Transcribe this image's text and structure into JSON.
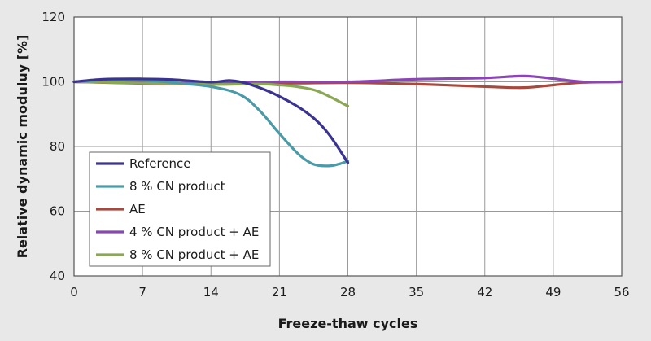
{
  "chart_data": {
    "type": "line",
    "title": "",
    "xlabel": "Freeze-thaw cycles",
    "ylabel": "Relative dynamic moduluy [%]",
    "xlim": [
      0,
      56
    ],
    "ylim": [
      40,
      120
    ],
    "xticks": [
      0,
      7,
      14,
      21,
      28,
      35,
      42,
      49,
      56
    ],
    "yticks": [
      40,
      60,
      80,
      100,
      120
    ],
    "grid": true,
    "legend_position": "bottom-left",
    "series": [
      {
        "name": "Reference",
        "color": "#3b3390",
        "x": [
          0,
          3,
          7,
          10,
          14,
          16,
          18,
          21,
          24,
          26,
          28
        ],
        "y": [
          100,
          100.8,
          100.9,
          100.7,
          99.9,
          100.4,
          99.2,
          95.5,
          90,
          84,
          75
        ]
      },
      {
        "name": "8 % CN product",
        "color": "#4a9aa8",
        "x": [
          0,
          4,
          7,
          10,
          14,
          17,
          19,
          21,
          23,
          24.5,
          26,
          27,
          28
        ],
        "y": [
          100,
          100.7,
          100.5,
          99.8,
          98.5,
          96,
          91,
          84,
          77.5,
          74.5,
          74,
          74.5,
          75.5
        ]
      },
      {
        "name": "AE",
        "color": "#a8493e",
        "x": [
          0,
          7,
          14,
          21,
          28,
          35,
          42,
          46,
          49,
          52,
          56
        ],
        "y": [
          100,
          99.5,
          99.2,
          99.5,
          99.7,
          99.3,
          98.5,
          98.2,
          99,
          99.8,
          100
        ]
      },
      {
        "name": "4 % CN product + AE",
        "color": "#8a46b4",
        "x": [
          0,
          7,
          14,
          21,
          28,
          35,
          42,
          46,
          49,
          52,
          56
        ],
        "y": [
          100,
          99.8,
          99.5,
          100,
          100,
          100.8,
          101.2,
          101.8,
          101,
          100,
          100
        ]
      },
      {
        "name": "8 % CN product + AE",
        "color": "#8aa853",
        "x": [
          0,
          7,
          14,
          19,
          21,
          23,
          25,
          28
        ],
        "y": [
          100,
          99.6,
          99.2,
          99.3,
          99,
          98.4,
          97,
          92.5
        ]
      }
    ]
  }
}
